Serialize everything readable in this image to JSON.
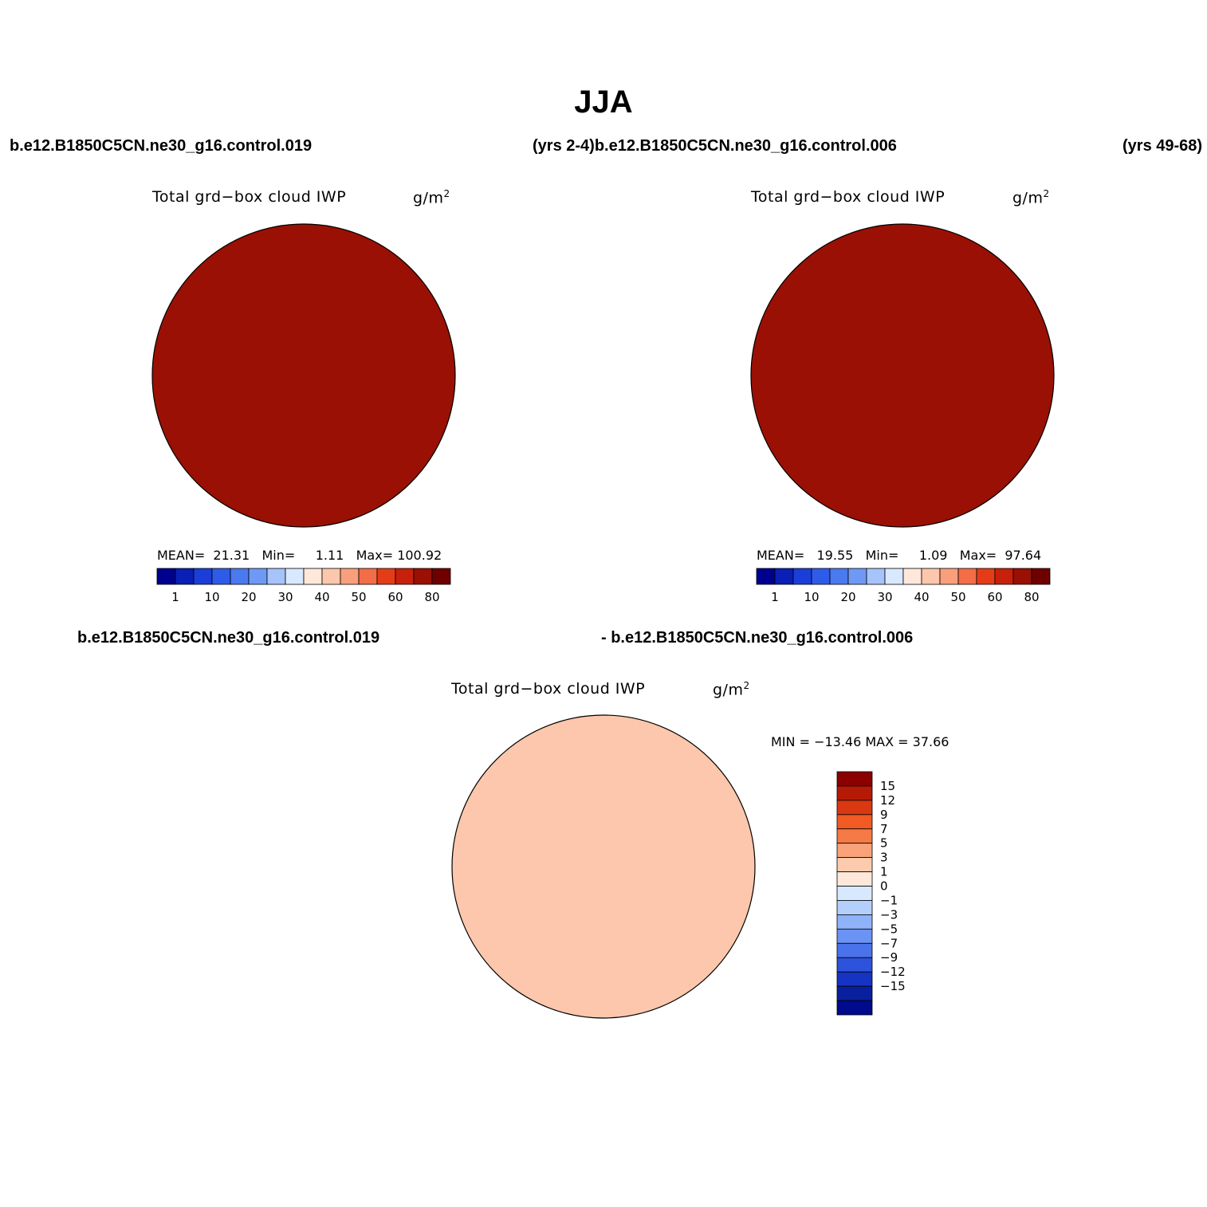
{
  "title": "JJA",
  "header_left": "b.e12.B1850C5CN.ne30_g16.control.019",
  "header_mid": "(yrs 2-4)b.e12.B1850C5CN.ne30_g16.control.006",
  "header_right": "(yrs 49-68)",
  "diff_header_left": "b.e12.B1850C5CN.ne30_g16.control.019",
  "diff_header_right": "- b.e12.B1850C5CN.ne30_g16.control.006",
  "panels": [
    {
      "var_title": "Total grd−box cloud IWP",
      "units": "g/m",
      "units_sup": "2",
      "stats": {
        "mean_label": "MEAN=",
        "mean": "21.31",
        "min_label": "Min=",
        "min": "1.11",
        "max_label": "Max=",
        "max": "100.92"
      }
    },
    {
      "var_title": "Total grd−box cloud IWP",
      "units": "g/m",
      "units_sup": "2",
      "stats": {
        "mean_label": "MEAN=",
        "mean": "19.55",
        "min_label": "Min=",
        "min": "1.09",
        "max_label": "Max=",
        "max": "97.64"
      }
    },
    {
      "var_title": "Total grd−box cloud IWP",
      "units": "g/m",
      "units_sup": "2",
      "stats_text": "MIN = −13.46 MAX =  37.66"
    }
  ],
  "colorbar_abs": {
    "colors": [
      "#00008f",
      "#0a1fb5",
      "#1b3ed9",
      "#2e5ce9",
      "#4a7af0",
      "#7099f5",
      "#a6c3fa",
      "#d8e9ff",
      "#ffe8da",
      "#fcc7ac",
      "#f99f7c",
      "#f36d47",
      "#e53c18",
      "#c8210b",
      "#9a1004",
      "#6e0000"
    ],
    "labels": [
      "1",
      "10",
      "20",
      "30",
      "40",
      "50",
      "60",
      "80"
    ]
  },
  "colorbar_diff": {
    "colors": [
      "#8b0000",
      "#b51a06",
      "#da3812",
      "#f15a22",
      "#f67a45",
      "#f9a27a",
      "#fccbad",
      "#ffe8da",
      "#d8e9ff",
      "#b5cffd",
      "#8fb2f9",
      "#6b93f4",
      "#4a72ea",
      "#2d52dc",
      "#1534c4",
      "#08209e",
      "#000a8c"
    ],
    "labels": [
      "15",
      "12",
      "9",
      "7",
      "5",
      "3",
      "1",
      "0",
      "−1",
      "−3",
      "−5",
      "−7",
      "−9",
      "−12",
      "−15"
    ]
  },
  "map_colors": {
    "land_outline": "#000000",
    "deep_blue": "#0a1fb5",
    "blue": "#1b3ed9",
    "mid_blue": "#2e5ce9",
    "light_blue": "#7099f5",
    "pale": "#ffe8da",
    "orange": "#f36d47",
    "red": "#e53c18",
    "dark_red": "#9a1004"
  }
}
